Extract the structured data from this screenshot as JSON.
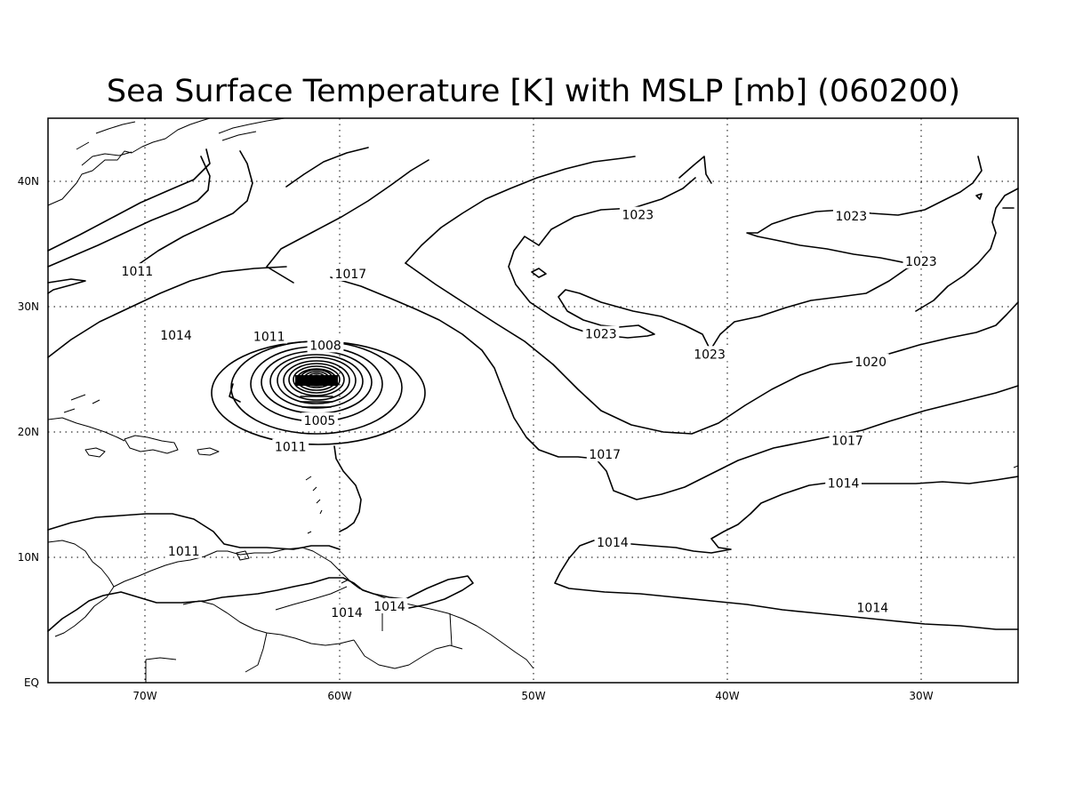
{
  "title": "Sea Surface Temperature [K] with MSLP [mb] (060200)",
  "x_ticks": [
    "70W",
    "60W",
    "50W",
    "40W",
    "30W"
  ],
  "y_ticks": [
    "EQ",
    "10N",
    "20N",
    "30N",
    "40N"
  ],
  "map": {
    "lon_range": [
      -75,
      -25
    ],
    "lat_range": [
      0,
      45
    ],
    "gridlines": "dotted",
    "contour_interval_mb": 3
  },
  "contour_labels": [
    {
      "text": "1011",
      "lon": -70.4,
      "lat": 32.8
    },
    {
      "text": "1017",
      "lon": -59.4,
      "lat": 32.6
    },
    {
      "text": "1014",
      "lon": -68.4,
      "lat": 27.7
    },
    {
      "text": "1011",
      "lon": -63.6,
      "lat": 27.6
    },
    {
      "text": "1008",
      "lon": -60.7,
      "lat": 26.9
    },
    {
      "text": "1005",
      "lon": -61.0,
      "lat": 20.9
    },
    {
      "text": "1011",
      "lon": -62.5,
      "lat": 18.8
    },
    {
      "text": "1011",
      "lon": -68.0,
      "lat": 10.5
    },
    {
      "text": "1014",
      "lon": -59.6,
      "lat": 5.6
    },
    {
      "text": "1014",
      "lon": -57.4,
      "lat": 6.1
    },
    {
      "text": "1023",
      "lon": -44.6,
      "lat": 37.3
    },
    {
      "text": "1023",
      "lon": -33.6,
      "lat": 37.2
    },
    {
      "text": "1023",
      "lon": -30.0,
      "lat": 33.6
    },
    {
      "text": "1023",
      "lon": -46.5,
      "lat": 27.8
    },
    {
      "text": "1023",
      "lon": -40.9,
      "lat": 26.2
    },
    {
      "text": "1020",
      "lon": -32.6,
      "lat": 25.6
    },
    {
      "text": "1017",
      "lon": -46.3,
      "lat": 18.2
    },
    {
      "text": "1017",
      "lon": -33.8,
      "lat": 19.3
    },
    {
      "text": "1014",
      "lon": -34.0,
      "lat": 15.9
    },
    {
      "text": "1014",
      "lon": -45.9,
      "lat": 11.2
    },
    {
      "text": "1014",
      "lon": -32.5,
      "lat": 6.0
    }
  ]
}
